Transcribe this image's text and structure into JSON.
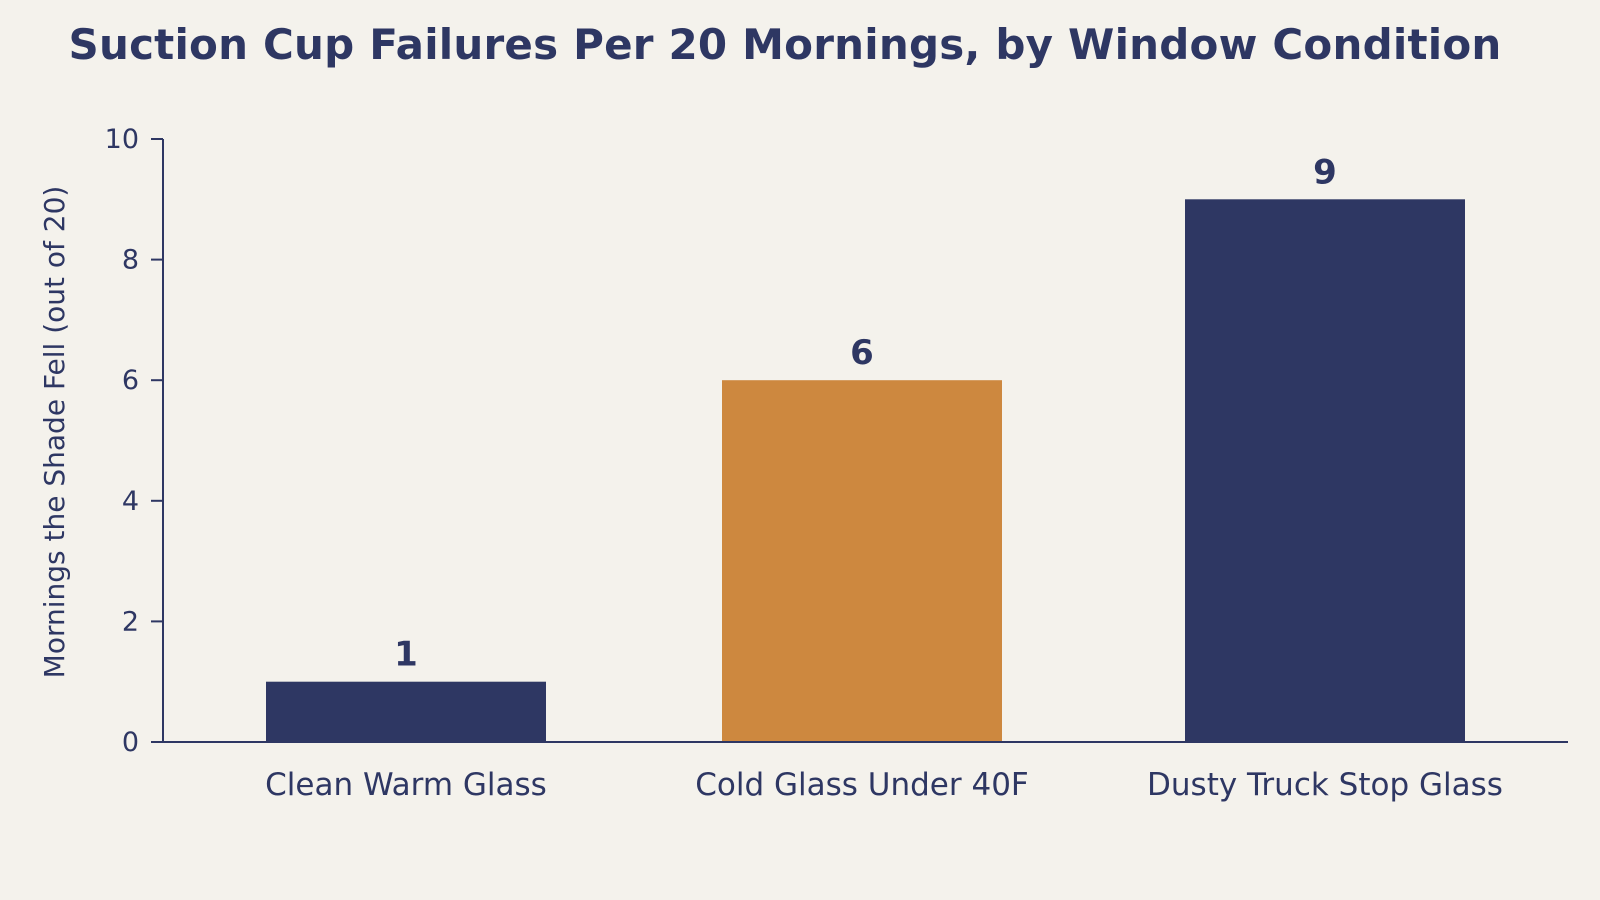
{
  "chart_data": {
    "type": "bar",
    "title": "Suction Cup Failures Per 20 Mornings, by Window Condition",
    "xlabel": "",
    "ylabel": "Mornings the Shade Fell (out of 20)",
    "categories": [
      "Clean Warm Glass",
      "Cold Glass Under 40F",
      "Dusty Truck Stop Glass"
    ],
    "values": [
      1,
      6,
      9
    ],
    "value_labels": [
      "1",
      "6",
      "9"
    ],
    "bar_colors": [
      "#2e3763",
      "#cd883f",
      "#2e3763"
    ],
    "ylim": [
      0,
      10
    ],
    "yticks": [
      0,
      2,
      4,
      6,
      8,
      10
    ],
    "ytick_labels": [
      "0",
      "2",
      "4",
      "6",
      "8",
      "10"
    ],
    "grid": false,
    "legend": "none"
  },
  "colors": {
    "background": "#f4f2ec",
    "text": "#2e3763",
    "highlight": "#cd883f"
  }
}
